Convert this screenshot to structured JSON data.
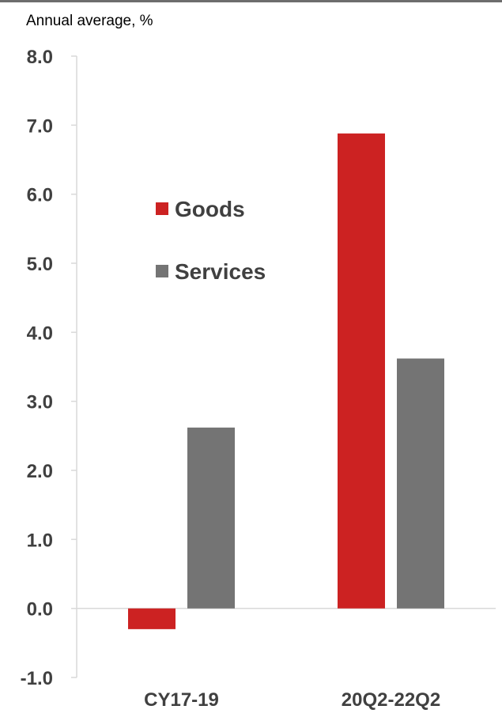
{
  "chart_data": {
    "type": "bar",
    "units_label": "Annual average, %",
    "categories": [
      "CY17-19",
      "20Q2-22Q2"
    ],
    "series": [
      {
        "name": "Goods",
        "color": "#cc2222",
        "values": [
          -0.3,
          6.88
        ]
      },
      {
        "name": "Services",
        "color": "#747474",
        "values": [
          2.62,
          3.62
        ]
      }
    ],
    "ylim": [
      -1.0,
      8.0
    ],
    "yticks": [
      "8.0",
      "7.0",
      "6.0",
      "5.0",
      "4.0",
      "3.0",
      "2.0",
      "1.0",
      "0.0",
      "-1.0"
    ],
    "ytick_values": [
      8,
      7,
      6,
      5,
      4,
      3,
      2,
      1,
      0,
      -1
    ],
    "grid": false,
    "legend_position": "upper-left"
  }
}
